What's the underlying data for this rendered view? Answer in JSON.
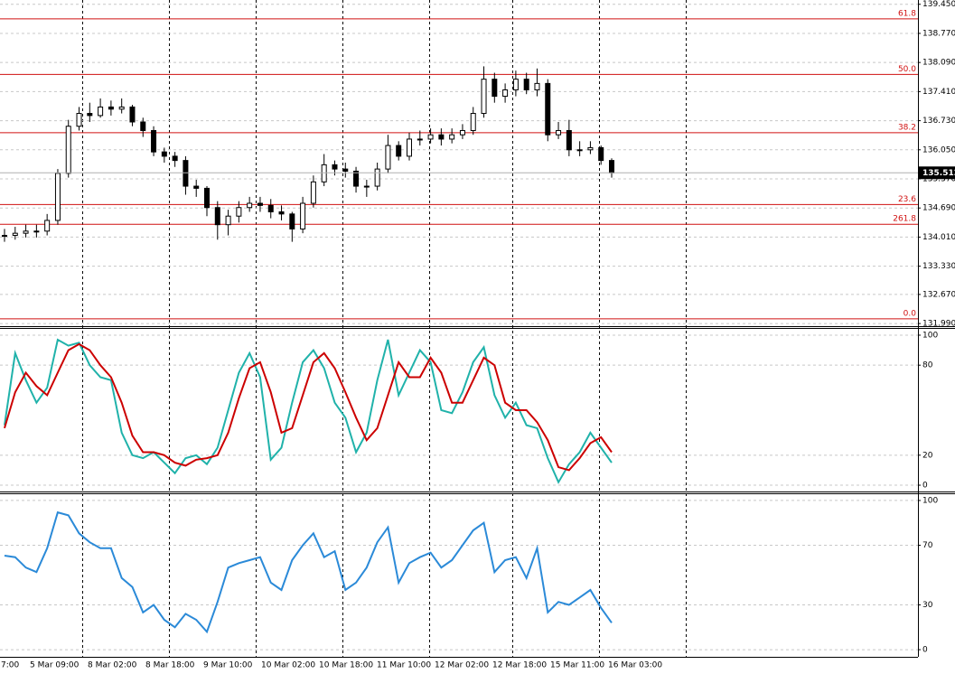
{
  "chart_data": [
    {
      "type": "candlestick",
      "close": [
        134.05,
        134.1,
        134.15,
        134.15,
        134.4,
        135.5,
        136.6,
        136.9,
        136.85,
        137.05,
        137.0,
        137.05,
        136.7,
        136.5,
        136.0,
        135.9,
        135.8,
        135.2,
        135.15,
        134.7,
        134.3,
        134.5,
        134.7,
        134.8,
        134.75,
        134.6,
        134.55,
        134.2,
        134.8,
        135.3,
        135.7,
        135.6,
        135.55,
        135.2,
        135.2,
        135.6,
        136.15,
        135.9,
        136.3,
        136.3,
        136.4,
        136.3,
        136.4,
        136.5,
        136.9,
        137.7,
        137.3,
        137.45,
        137.7,
        137.45,
        137.6,
        136.4,
        136.5,
        136.05,
        136.05,
        136.1,
        135.8,
        135.51
      ],
      "high": [
        134.2,
        134.25,
        134.3,
        134.3,
        134.55,
        135.6,
        136.75,
        137.05,
        137.15,
        137.25,
        137.2,
        137.25,
        137.1,
        136.8,
        136.6,
        136.1,
        136.0,
        135.9,
        135.35,
        135.2,
        134.85,
        134.65,
        134.85,
        134.95,
        134.95,
        134.9,
        134.75,
        134.6,
        134.95,
        135.45,
        135.95,
        135.8,
        135.75,
        135.65,
        135.35,
        135.75,
        136.4,
        136.25,
        136.45,
        136.5,
        136.55,
        136.55,
        136.55,
        136.65,
        137.05,
        138.0,
        137.85,
        137.6,
        137.9,
        137.85,
        137.95,
        137.7,
        136.7,
        136.75,
        136.25,
        136.25,
        136.15,
        135.85
      ],
      "low": [
        133.9,
        133.95,
        134.0,
        134.0,
        134.05,
        134.3,
        135.4,
        136.5,
        136.7,
        136.8,
        136.85,
        136.9,
        136.6,
        136.35,
        135.9,
        135.75,
        135.65,
        135.0,
        134.95,
        134.5,
        133.95,
        134.05,
        134.35,
        134.6,
        134.6,
        134.45,
        134.4,
        133.9,
        134.1,
        134.7,
        135.2,
        135.45,
        135.4,
        135.05,
        134.95,
        135.1,
        135.5,
        135.8,
        135.8,
        136.15,
        136.2,
        136.15,
        136.2,
        136.3,
        136.4,
        136.8,
        137.15,
        137.15,
        137.3,
        137.35,
        137.3,
        136.25,
        136.3,
        135.9,
        135.9,
        135.95,
        135.7,
        135.4
      ],
      "ylim": [
        131.95,
        139.55
      ],
      "yticks": [
        {
          "value": 139.45,
          "label": "139.450"
        },
        {
          "value": 138.77,
          "label": "138.770"
        },
        {
          "value": 138.09,
          "label": "138.090"
        },
        {
          "value": 137.41,
          "label": "137.410"
        },
        {
          "value": 136.73,
          "label": "136.730"
        },
        {
          "value": 136.05,
          "label": "136.050"
        },
        {
          "value": 135.37,
          "label": "135.370"
        },
        {
          "value": 134.69,
          "label": "134.690"
        },
        {
          "value": 134.01,
          "label": "134.010"
        },
        {
          "value": 133.33,
          "label": "133.330"
        },
        {
          "value": 132.67,
          "label": "132.670"
        },
        {
          "value": 131.99,
          "label": "131.990"
        }
      ],
      "levels": [
        {
          "value": 139.11,
          "label": "61.8"
        },
        {
          "value": 137.81,
          "label": "50.0"
        },
        {
          "value": 136.45,
          "label": "38.2"
        },
        {
          "value": 134.77,
          "label": "23.6"
        },
        {
          "value": 134.31,
          "label": "261.8"
        },
        {
          "value": 132.1,
          "label": "0.0"
        }
      ],
      "current_price": 135.512,
      "time_labels": [
        "7:00",
        "5 Mar 09:00",
        "8 Mar 02:00",
        "8 Mar 18:00",
        "9 Mar 10:00",
        "10 Mar 02:00",
        "10 Mar 18:00",
        "11 Mar 10:00",
        "12 Mar 02:00",
        "12 Mar 18:00",
        "15 Mar 11:00",
        "16 Mar 03:00"
      ],
      "grid": true
    },
    {
      "type": "line",
      "series": [
        {
          "color": "#20b2aa",
          "values": [
            40,
            88,
            70,
            55,
            65,
            97,
            93,
            95,
            80,
            72,
            70,
            35,
            20,
            18,
            22,
            15,
            8,
            18,
            20,
            14,
            25,
            50,
            75,
            88,
            72,
            17,
            25,
            55,
            82,
            90,
            78,
            55,
            45,
            22,
            35,
            70,
            97,
            60,
            75,
            90,
            82,
            50,
            48,
            62,
            82,
            92,
            60,
            45,
            55,
            40,
            38,
            18,
            2,
            14,
            22,
            35,
            25,
            15
          ]
        },
        {
          "color": "#cc0000",
          "values": [
            38,
            62,
            75,
            66,
            60,
            75,
            90,
            94,
            90,
            80,
            72,
            55,
            33,
            22,
            22,
            20,
            15,
            13,
            17,
            18,
            20,
            35,
            58,
            78,
            82,
            62,
            35,
            38,
            60,
            82,
            88,
            78,
            62,
            45,
            30,
            38,
            60,
            82,
            72,
            72,
            85,
            75,
            55,
            55,
            70,
            85,
            80,
            55,
            50,
            50,
            42,
            30,
            12,
            10,
            18,
            28,
            32,
            22
          ]
        }
      ],
      "ylim": [
        -3.6,
        104.2
      ],
      "yticks": [
        100,
        80,
        20,
        0
      ],
      "grid": true
    },
    {
      "type": "line",
      "series": [
        {
          "color": "#2b8ad8",
          "values": [
            63,
            62,
            55,
            52,
            68,
            92,
            90,
            78,
            72,
            68,
            68,
            48,
            42,
            25,
            30,
            20,
            15,
            24,
            20,
            12,
            32,
            55,
            58,
            60,
            62,
            45,
            40,
            60,
            70,
            78,
            62,
            66,
            40,
            45,
            55,
            72,
            82,
            45,
            58,
            62,
            65,
            55,
            60,
            70,
            80,
            85,
            52,
            60,
            62,
            48,
            68,
            25,
            32,
            30,
            35,
            40,
            28,
            18
          ]
        }
      ],
      "ylim": [
        -4.8,
        104.2
      ],
      "yticks": [
        100,
        70,
        30,
        0
      ],
      "grid": true
    }
  ]
}
